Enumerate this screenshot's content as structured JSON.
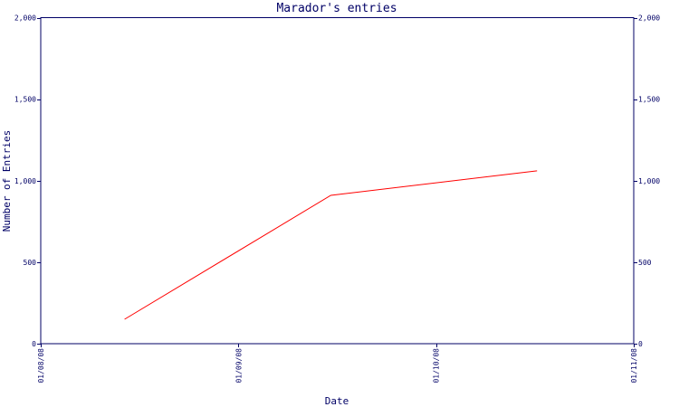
{
  "chart_data": {
    "type": "line",
    "title": "Marador's entries",
    "xlabel": "Date",
    "ylabel": "Number of Entries",
    "x_ticks": [
      "01/08/08",
      "01/09/08",
      "01/10/08",
      "01/11/08"
    ],
    "y_ticks": [
      "0",
      "500",
      "1,000",
      "1,500",
      "2,000"
    ],
    "ylim": [
      0,
      2000
    ],
    "xlim": [
      "2008-08-01",
      "2008-11-01"
    ],
    "right_axis_mirror": true,
    "grid": false,
    "colors": {
      "axis": "#000066",
      "line": "#ff0000"
    },
    "series": [
      {
        "x": [
          "2008-08-14",
          "2008-09-15",
          "2008-10-17"
        ],
        "y": [
          150,
          910,
          1060
        ]
      }
    ]
  }
}
